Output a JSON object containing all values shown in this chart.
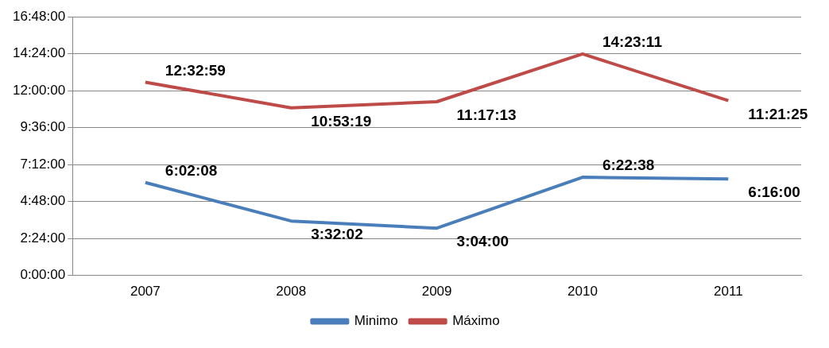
{
  "chart_data": {
    "type": "line",
    "categories": [
      "2007",
      "2008",
      "2009",
      "2010",
      "2011"
    ],
    "series": [
      {
        "name": "Minimo",
        "color": "#4a7ebb",
        "values": [
          6.0356,
          3.5339,
          3.0667,
          6.3772,
          6.2667
        ],
        "value_labels": [
          "6:02:08",
          "3:32:02",
          "3:04:00",
          "6:22:38",
          "6:16:00"
        ]
      },
      {
        "name": "Máximo",
        "color": "#be4b48",
        "values": [
          12.5497,
          10.8886,
          11.2869,
          14.3864,
          11.3569
        ],
        "value_labels": [
          "12:32:59",
          "10:53:19",
          "11:17:13",
          "14:23:11",
          "11:21:25"
        ]
      }
    ],
    "ylim": [
      0,
      16.8
    ],
    "yticks": [
      {
        "value": 0,
        "label": "0:00:00"
      },
      {
        "value": 2.4,
        "label": "2:24:00"
      },
      {
        "value": 4.8,
        "label": "4:48:00"
      },
      {
        "value": 7.2,
        "label": "7:12:00"
      },
      {
        "value": 9.6,
        "label": "9:36:00"
      },
      {
        "value": 12,
        "label": "12:00:00"
      },
      {
        "value": 14.4,
        "label": "14:24:00"
      },
      {
        "value": 16.8,
        "label": "16:48:00"
      }
    ],
    "grid": "y",
    "legend": "bottom",
    "marker": "none",
    "line_style": "solid"
  }
}
